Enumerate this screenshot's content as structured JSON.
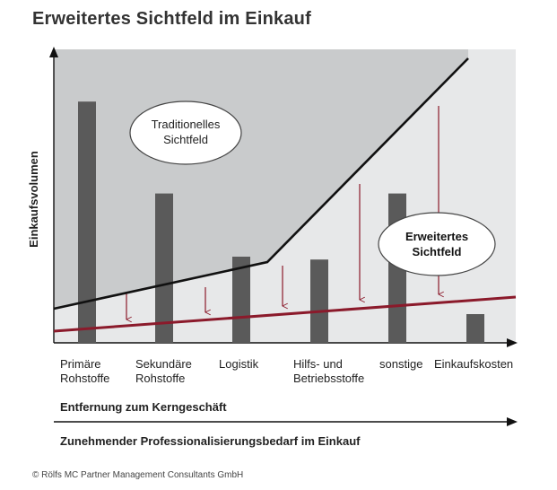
{
  "title": "Erweitertes Sichtfeld im Einkauf",
  "y_axis_label": "Einkaufsvolumen",
  "categories": [
    {
      "line1": "Primäre",
      "line2": "Rohstoffe"
    },
    {
      "line1": "Sekundäre",
      "line2": "Rohstoffe"
    },
    {
      "line1": "Logistik",
      "line2": ""
    },
    {
      "line1": "Hilfs- und",
      "line2": "Betriebsstoffe"
    },
    {
      "line1": "sonstige",
      "line2": ""
    },
    {
      "line1": "Einkaufskosten",
      "line2": ""
    }
  ],
  "bar_values": [
    0.84,
    0.52,
    0.3,
    0.29,
    0.52,
    0.1
  ],
  "traditional_label": {
    "line1": "Traditionelles",
    "line2": "Sichtfeld"
  },
  "extended_label": {
    "line1": "Erweitertes",
    "line2": "Sichtfeld"
  },
  "axis_label_1": "Entfernung zum Kerngeschäft",
  "axis_label_2": "Zunehmender Professionalisierungsbedarf im Einkauf",
  "copyright": "© Rölfs MC Partner Management Consultants GmbH",
  "colors": {
    "bar": "#5a5a5a",
    "shade_dark": "#c9cbcc",
    "shade_light": "#e7e8e9",
    "boundary": "#111111",
    "threshold": "#8b1a2b"
  }
}
